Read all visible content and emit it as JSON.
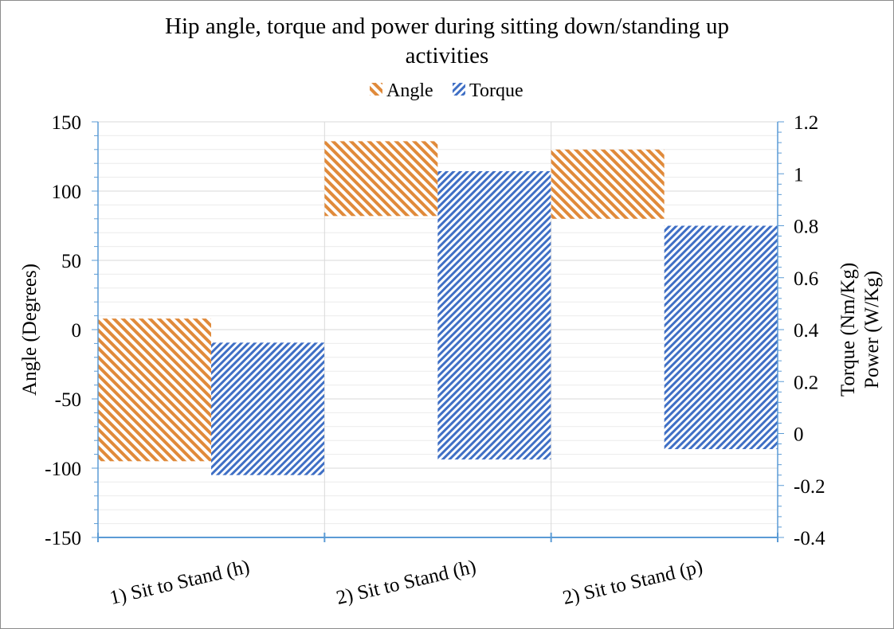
{
  "chart_data": {
    "type": "bar",
    "title_lines": [
      "Hip  angle, torque and power during  sitting down/standing up",
      "activities"
    ],
    "categories": [
      "1) Sit to Stand (h)",
      "2) Sit to Stand (h)",
      "2) Sit to Stand (p)"
    ],
    "series": [
      {
        "name": "Angle",
        "axis": "left",
        "color": "#e08a3a",
        "ranges": [
          [
            -95,
            8
          ],
          [
            82,
            136
          ],
          [
            80,
            130
          ]
        ]
      },
      {
        "name": "Torque",
        "axis": "right",
        "color": "#3f6fc5",
        "ranges": [
          [
            -0.16,
            0.35
          ],
          [
            -0.1,
            1.01
          ],
          [
            -0.06,
            0.8
          ]
        ]
      }
    ],
    "left_axis": {
      "label": "Angle (Degrees)",
      "range": [
        -150,
        150
      ],
      "ticks": [
        "150",
        "100",
        "50",
        "0",
        "-50",
        "-100",
        "-150"
      ]
    },
    "right_axis": {
      "label_lines": [
        "Torque (Nm/Kg)",
        "Power (W/Kg)"
      ],
      "range": [
        -0.4,
        1.2
      ],
      "ticks": [
        "1.2",
        "1",
        "0.8",
        "0.6",
        "0.4",
        "0.2",
        "0",
        "-0.2",
        "-0.4"
      ]
    },
    "grid": true,
    "legend_position": "top-center"
  }
}
